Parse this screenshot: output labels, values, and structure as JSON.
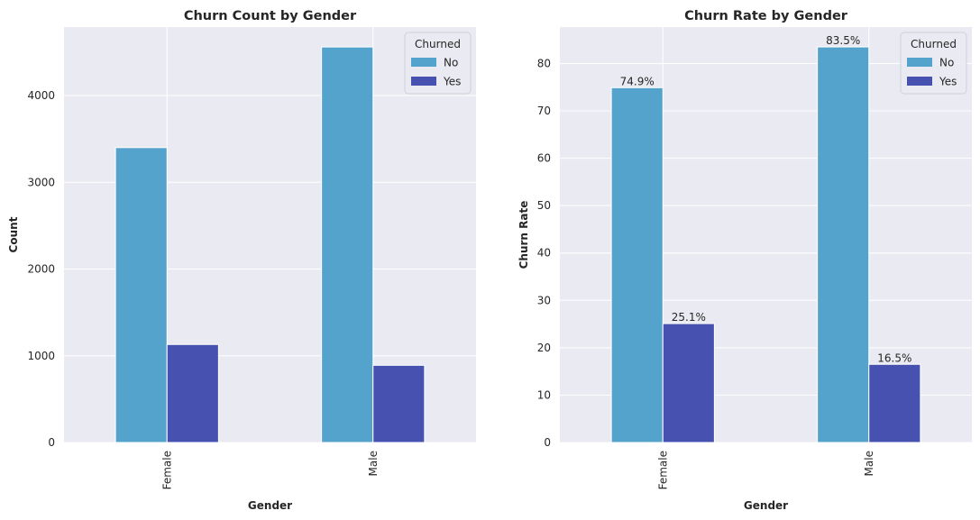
{
  "chart_data": [
    {
      "type": "bar",
      "title": "Churn Count by Gender",
      "xlabel": "Gender",
      "ylabel": "Count",
      "categories": [
        "Female",
        "Male"
      ],
      "series": [
        {
          "name": "No",
          "values": [
            3400,
            4560
          ],
          "color": "#54a3cc"
        },
        {
          "name": "Yes",
          "values": [
            1130,
            890
          ],
          "color": "#4651b0"
        }
      ],
      "ylim": [
        0,
        4790
      ],
      "yticks": [
        0,
        1000,
        2000,
        3000,
        4000
      ],
      "ytick_labels": [
        "0",
        "1000",
        "2000",
        "3000",
        "4000"
      ],
      "legend": {
        "title": "Churned",
        "placement": "top-right"
      },
      "grid": true,
      "background": "#eaeaf2"
    },
    {
      "type": "bar",
      "title": "Churn Rate by Gender",
      "xlabel": "Gender",
      "ylabel": "Churn Rate",
      "categories": [
        "Female",
        "Male"
      ],
      "series": [
        {
          "name": "No",
          "values": [
            74.9,
            83.5
          ],
          "labels": [
            "74.9%",
            "83.5%"
          ],
          "color": "#54a3cc"
        },
        {
          "name": "Yes",
          "values": [
            25.1,
            16.5
          ],
          "labels": [
            "25.1%",
            "16.5%"
          ],
          "color": "#4651b0"
        }
      ],
      "ylim": [
        0,
        87.7
      ],
      "yticks": [
        0,
        10,
        20,
        30,
        40,
        50,
        60,
        70,
        80
      ],
      "ytick_labels": [
        "0",
        "10",
        "20",
        "30",
        "40",
        "50",
        "60",
        "70",
        "80"
      ],
      "legend": {
        "title": "Churned",
        "placement": "top-right"
      },
      "grid": true,
      "background": "#eaeaf2"
    }
  ]
}
